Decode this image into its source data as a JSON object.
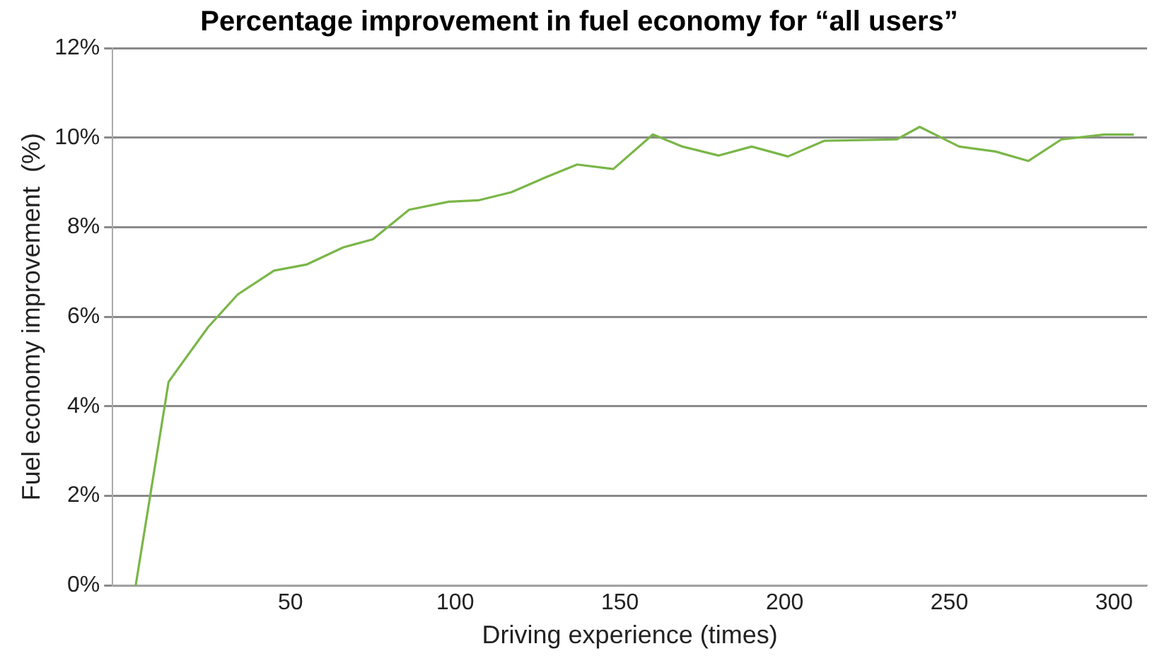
{
  "chart_data": {
    "type": "line",
    "title": "Percentage improvement in fuel economy for “all users”",
    "xlabel": "Driving experience (times)",
    "ylabel": "Fuel economy improvement  (%)",
    "series": [
      {
        "color": "#7ab648",
        "x": [
          3,
          13,
          25,
          34,
          45,
          55,
          66,
          75,
          86,
          98,
          107,
          117,
          127,
          137,
          148,
          160,
          169,
          180,
          190,
          201,
          212,
          234,
          241,
          253,
          264,
          274,
          284,
          297,
          306
        ],
        "values": [
          0,
          4.55,
          5.77,
          6.5,
          7.03,
          7.17,
          7.55,
          7.73,
          8.39,
          8.57,
          8.6,
          8.78,
          9.1,
          9.4,
          9.3,
          10.07,
          9.8,
          9.6,
          9.8,
          9.58,
          9.93,
          9.96,
          10.24,
          9.8,
          9.69,
          9.48,
          9.96,
          10.07,
          10.07
        ]
      }
    ],
    "xlim": [
      -4,
      310
    ],
    "xticks": [
      50,
      100,
      150,
      200,
      250,
      300
    ],
    "ylim": [
      0,
      12
    ],
    "yticks": [
      {
        "value": 0,
        "label": "0%"
      },
      {
        "value": 2,
        "label": "2%"
      },
      {
        "value": 4,
        "label": "4%"
      },
      {
        "value": 6,
        "label": "6%"
      },
      {
        "value": 8,
        "label": "8%"
      },
      {
        "value": 10,
        "label": "10%"
      },
      {
        "value": 12,
        "label": "12%"
      }
    ],
    "grid": "y",
    "legend": false,
    "marker": "none",
    "line_style": "solid"
  }
}
